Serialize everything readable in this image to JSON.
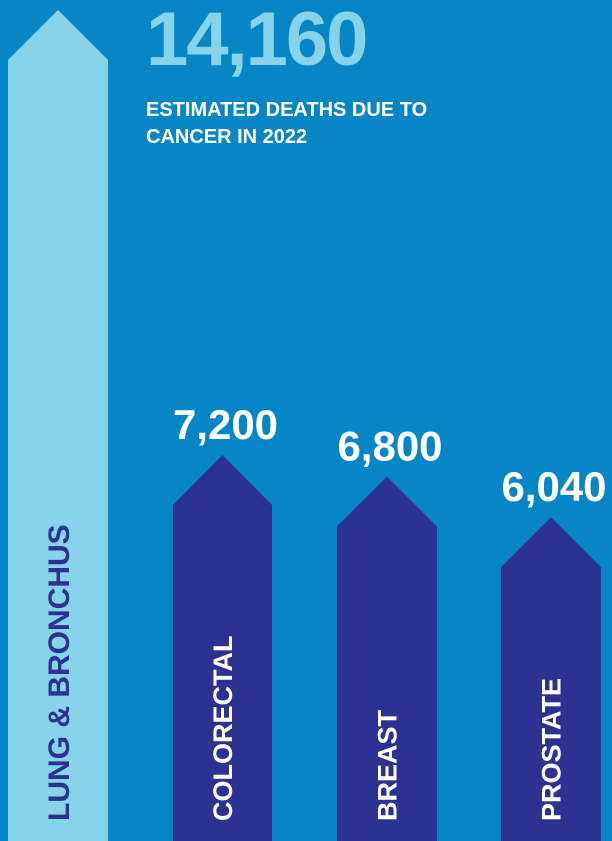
{
  "headline": {
    "value": "14,160",
    "label": "ESTIMATED DEATHS DUE TO CANCER IN 2022"
  },
  "colors": {
    "background": "#0686c4",
    "headline": "#86d3ea",
    "lung_arrow": "#86d3ea",
    "arrow": "#2c3292",
    "value_label": "#ffffff",
    "category_label": "#ffffff",
    "lung_label": "#2c3292"
  },
  "chart_data": {
    "type": "bar",
    "style": "arrows",
    "categories": [
      "LUNG & BRONCHUS",
      "COLORECTAL",
      "BREAST",
      "PROSTATE"
    ],
    "values": [
      null,
      7200,
      6800,
      6040
    ],
    "value_labels": [
      "",
      "7,200",
      "6,800",
      "6,040"
    ],
    "title": "",
    "xlabel": "",
    "ylabel": ""
  }
}
